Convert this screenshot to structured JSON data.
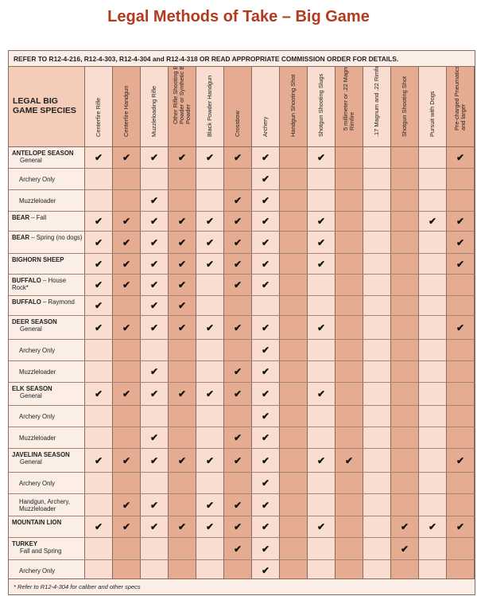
{
  "title": "Legal Methods of Take – Big Game",
  "reference": "REFER TO R12-4-216, R12-4-303, R12-4-304 and R12-4-318 OR READ APPROPRIATE COMMISSION ORDER FOR DETAILS.",
  "species_header": "LEGAL BIG GAME SPECIES",
  "check_mark": "✔",
  "colors": {
    "title": "#b33a1f",
    "light_col": "#f8ddd0",
    "dark_col": "#e6ac92",
    "light_bg": "#fbeee6"
  },
  "columns": [
    "Centerfire Rifle",
    "Centerfire Handgun",
    "Muzzleloading Rifle",
    "Other Rifle Shooting Black Powder or Synthetic Black Powder",
    "Black Powder Handgun",
    "Crossbow",
    "Archery",
    "Handgun Shooting Shot",
    "Shotgun Shooting Slugs",
    "5 millimeter or .22 Magnum Rimfire",
    ".17 Magnum and .22 Rimfire",
    "Shotgun Shooting Shot",
    "Pursuit with Dogs",
    "Pre-charged Pneumatics .35 and larger"
  ],
  "rows": [
    {
      "label": "ANTELOPE SEASON",
      "sub": "General",
      "checks": [
        1,
        1,
        1,
        1,
        1,
        1,
        1,
        0,
        1,
        0,
        0,
        0,
        0,
        1
      ]
    },
    {
      "label": "",
      "sub": "Archery Only",
      "checks": [
        0,
        0,
        0,
        0,
        0,
        0,
        1,
        0,
        0,
        0,
        0,
        0,
        0,
        0
      ]
    },
    {
      "label": "",
      "sub": "Muzzleloader",
      "checks": [
        0,
        0,
        1,
        0,
        0,
        1,
        1,
        0,
        0,
        0,
        0,
        0,
        0,
        0
      ]
    },
    {
      "label": "BEAR",
      "sub": " – Fall",
      "inline": true,
      "checks": [
        1,
        1,
        1,
        1,
        1,
        1,
        1,
        0,
        1,
        0,
        0,
        0,
        1,
        1
      ]
    },
    {
      "label": "BEAR",
      "sub": " – Spring (no dogs)",
      "inline": true,
      "checks": [
        1,
        1,
        1,
        1,
        1,
        1,
        1,
        0,
        1,
        0,
        0,
        0,
        0,
        1
      ]
    },
    {
      "label": "BIGHORN SHEEP",
      "sub": "",
      "checks": [
        1,
        1,
        1,
        1,
        1,
        1,
        1,
        0,
        1,
        0,
        0,
        0,
        0,
        1
      ]
    },
    {
      "label": "BUFFALO",
      "sub": " – House Rock*",
      "inline": true,
      "checks": [
        1,
        1,
        1,
        1,
        0,
        1,
        1,
        0,
        0,
        0,
        0,
        0,
        0,
        0
      ]
    },
    {
      "label": "BUFFALO",
      "sub": " – Raymond",
      "inline": true,
      "checks": [
        1,
        0,
        1,
        1,
        0,
        0,
        0,
        0,
        0,
        0,
        0,
        0,
        0,
        0
      ]
    },
    {
      "label": "DEER SEASON",
      "sub": "General",
      "checks": [
        1,
        1,
        1,
        1,
        1,
        1,
        1,
        0,
        1,
        0,
        0,
        0,
        0,
        1
      ]
    },
    {
      "label": "",
      "sub": "Archery Only",
      "checks": [
        0,
        0,
        0,
        0,
        0,
        0,
        1,
        0,
        0,
        0,
        0,
        0,
        0,
        0
      ]
    },
    {
      "label": "",
      "sub": "Muzzleloader",
      "checks": [
        0,
        0,
        1,
        0,
        0,
        1,
        1,
        0,
        0,
        0,
        0,
        0,
        0,
        0
      ]
    },
    {
      "label": "ELK SEASON",
      "sub": "General",
      "checks": [
        1,
        1,
        1,
        1,
        1,
        1,
        1,
        0,
        1,
        0,
        0,
        0,
        0,
        0
      ]
    },
    {
      "label": "",
      "sub": "Archery Only",
      "checks": [
        0,
        0,
        0,
        0,
        0,
        0,
        1,
        0,
        0,
        0,
        0,
        0,
        0,
        0
      ]
    },
    {
      "label": "",
      "sub": "Muzzleloader",
      "checks": [
        0,
        0,
        1,
        0,
        0,
        1,
        1,
        0,
        0,
        0,
        0,
        0,
        0,
        0
      ]
    },
    {
      "label": "JAVELINA SEASON",
      "sub": "General",
      "checks": [
        1,
        1,
        1,
        1,
        1,
        1,
        1,
        0,
        1,
        1,
        0,
        0,
        0,
        1
      ]
    },
    {
      "label": "",
      "sub": "Archery Only",
      "checks": [
        0,
        0,
        0,
        0,
        0,
        0,
        1,
        0,
        0,
        0,
        0,
        0,
        0,
        0
      ]
    },
    {
      "label": "",
      "sub": "Handgun, Archery, Muzzleloader",
      "checks": [
        0,
        1,
        1,
        0,
        1,
        1,
        1,
        0,
        0,
        0,
        0,
        0,
        0,
        0
      ]
    },
    {
      "label": "MOUNTAIN LION",
      "sub": "",
      "checks": [
        1,
        1,
        1,
        1,
        1,
        1,
        1,
        0,
        1,
        0,
        0,
        1,
        1,
        1
      ]
    },
    {
      "label": "TURKEY",
      "sub": "Fall and Spring",
      "checks": [
        0,
        0,
        0,
        0,
        0,
        1,
        1,
        0,
        0,
        0,
        0,
        1,
        0,
        0
      ]
    },
    {
      "label": "",
      "sub": "Archery Only",
      "checks": [
        0,
        0,
        0,
        0,
        0,
        0,
        1,
        0,
        0,
        0,
        0,
        0,
        0,
        0
      ]
    }
  ],
  "footnote": "* Refer to R12-4-304 for caliber and other specs"
}
